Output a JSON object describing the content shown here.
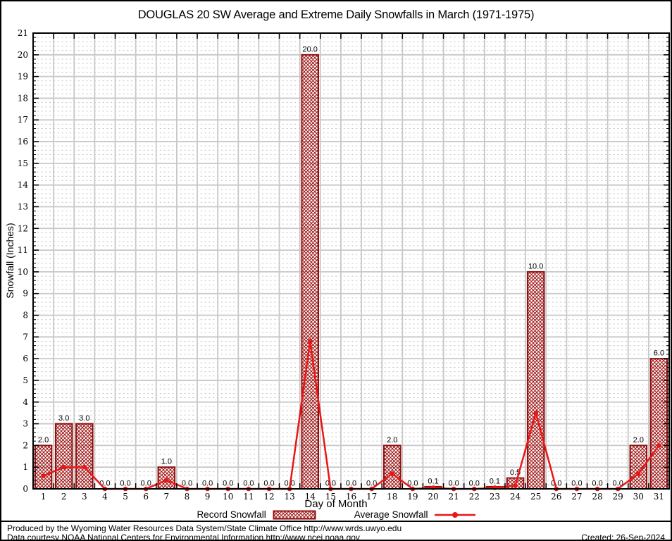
{
  "page": {
    "title": "DOUGLAS 20 SW Average and Extreme Daily Snowfalls in March (1971-1975)"
  },
  "footer": {
    "line1": "Produced by the Wyoming Water Resources Data System/State Climate Office http://www.wrds.uwyo.edu",
    "line2": "Data courtesy NOAA National Centers for Environmental Information http://www.ncei.noaa.gov",
    "created": "Created: 26-Sep-2024"
  },
  "chart_data": {
    "type": "bar",
    "title": "DOUGLAS 20 SW Average and Extreme Daily Snowfalls in March (1971-1975)",
    "xlabel": "Day of Month",
    "ylabel": "Snowfall (Inches)",
    "x": [
      1,
      2,
      3,
      4,
      5,
      6,
      7,
      8,
      9,
      10,
      11,
      12,
      13,
      14,
      15,
      16,
      17,
      18,
      19,
      20,
      21,
      22,
      23,
      24,
      25,
      26,
      27,
      28,
      29,
      30,
      31
    ],
    "series": [
      {
        "name": "Record Snowfall",
        "type": "bar",
        "values": [
          2.0,
          3.0,
          3.0,
          0.0,
          0.0,
          0.0,
          1.0,
          0.0,
          0.0,
          0.0,
          0.0,
          0.0,
          0.0,
          20.0,
          0.0,
          0.0,
          0.0,
          2.0,
          0.0,
          0.1,
          0.0,
          0.0,
          0.1,
          0.5,
          10.0,
          0.0,
          0.0,
          0.0,
          0.0,
          2.0,
          6.0
        ]
      },
      {
        "name": "Average Snowfall",
        "type": "line",
        "values": [
          0.6,
          1.0,
          1.0,
          0.0,
          0.0,
          0.0,
          0.4,
          0.0,
          0.0,
          0.0,
          0.0,
          0.0,
          0.0,
          6.8,
          0.0,
          0.0,
          0.0,
          0.7,
          0.0,
          0.05,
          0.0,
          0.0,
          0.05,
          0.15,
          3.5,
          0.0,
          0.0,
          0.0,
          0.0,
          0.7,
          2.0
        ]
      }
    ],
    "ylim": [
      0,
      21
    ],
    "xlim": [
      0.5,
      31.5
    ],
    "ytick_step": 1,
    "bar_value_labels": true,
    "grid": {
      "major": "solid",
      "minor": "dotted",
      "minor_per_unit": 4
    },
    "legend_position": "bottom-center",
    "colors": {
      "bar_border": "#8f0e0e",
      "bar_hatch": "#9e1212",
      "line": "#e81717",
      "grid_major": "#c8c8c8",
      "grid_minor": "#c2c2c2",
      "axis": "#000000"
    }
  }
}
